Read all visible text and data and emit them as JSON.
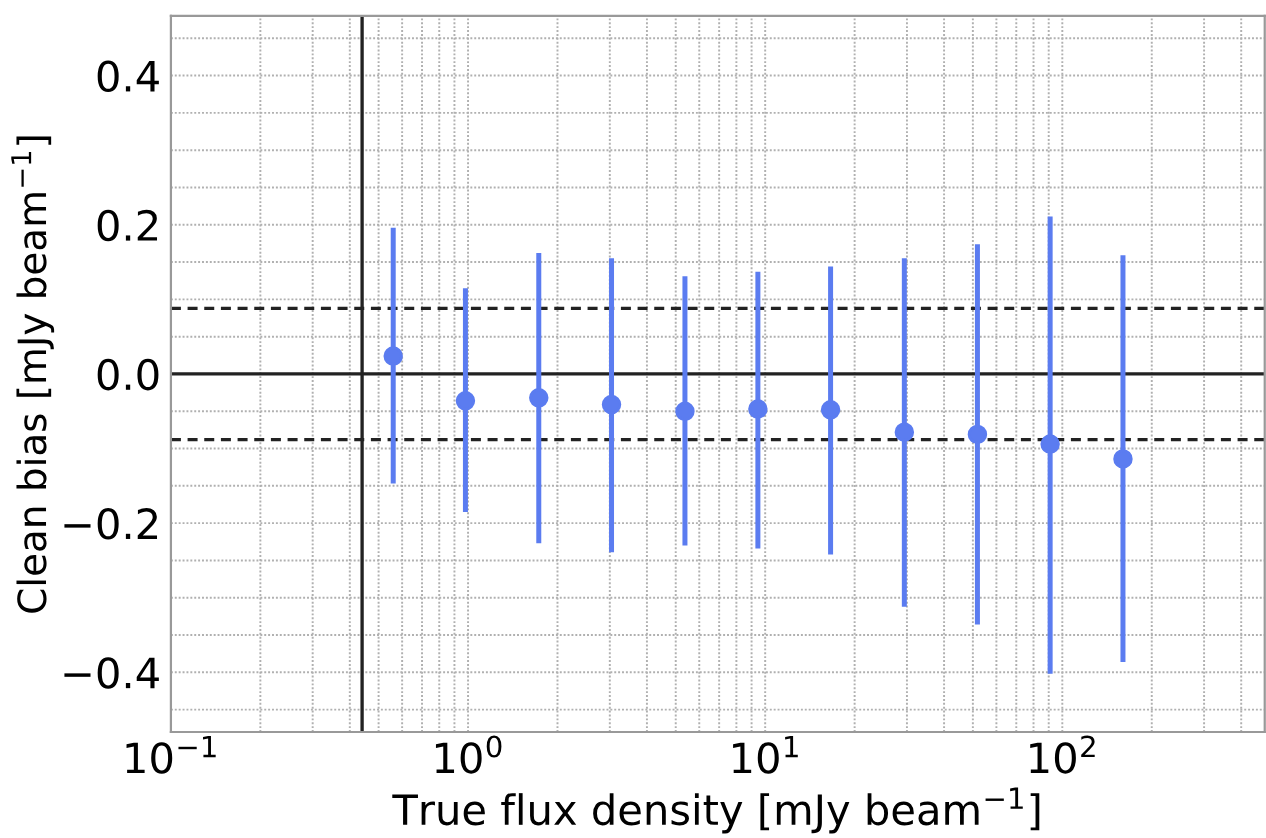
{
  "chart_data": {
    "type": "scatter",
    "xlabel": "True flux density [mJy beam$^{−1}$]",
    "ylabel": "Clean bias [mJy beam$^{−1}$]",
    "x": [
      0.56,
      0.98,
      1.73,
      3.04,
      5.37,
      9.45,
      16.6,
      29.4,
      51.8,
      91.0,
      160
    ],
    "series": [
      {
        "color": "#5b7cf0",
        "values": [
          0.024,
          -0.036,
          -0.032,
          -0.041,
          -0.05,
          -0.047,
          -0.048,
          -0.078,
          -0.081,
          -0.094,
          -0.114
        ],
        "errors": [
          [
            -0.147,
            0.196
          ],
          [
            -0.185,
            0.115
          ],
          [
            -0.227,
            0.162
          ],
          [
            -0.239,
            0.155
          ],
          [
            -0.23,
            0.131
          ],
          [
            -0.234,
            0.137
          ],
          [
            -0.242,
            0.144
          ],
          [
            -0.312,
            0.155
          ],
          [
            -0.336,
            0.174
          ],
          [
            -0.402,
            0.211
          ],
          [
            -0.386,
            0.159
          ]
        ]
      }
    ],
    "xlim": [
      0.1,
      480
    ],
    "ylim": [
      -0.48,
      0.48
    ],
    "xticks": [
      {
        "value": 0.1,
        "label": "10$^{−1}$"
      },
      {
        "value": 1,
        "label": "10$^{0}$"
      },
      {
        "value": 10,
        "label": "10$^{1}$"
      },
      {
        "value": 100,
        "label": "10$^{2}$"
      }
    ],
    "yticks": [
      {
        "value": -0.4,
        "label": "−0.4"
      },
      {
        "value": -0.2,
        "label": "−0.2"
      },
      {
        "value": 0,
        "label": "0.0"
      },
      {
        "value": 0.2,
        "label": "0.2"
      },
      {
        "value": 0.4,
        "label": "0.4"
      }
    ],
    "log": "x",
    "grid": true,
    "marker": "circle",
    "ref_lines": [
      {
        "axis": "y",
        "value": 0,
        "color": "#222222",
        "line_style": "solid"
      },
      {
        "axis": "y",
        "value": 0.088,
        "color": "#222222",
        "line_style": "dashed"
      },
      {
        "axis": "y",
        "value": -0.088,
        "color": "#222222",
        "line_style": "dashed"
      },
      {
        "axis": "x",
        "value": 0.44,
        "color": "#222222",
        "line_style": "solid"
      }
    ]
  }
}
